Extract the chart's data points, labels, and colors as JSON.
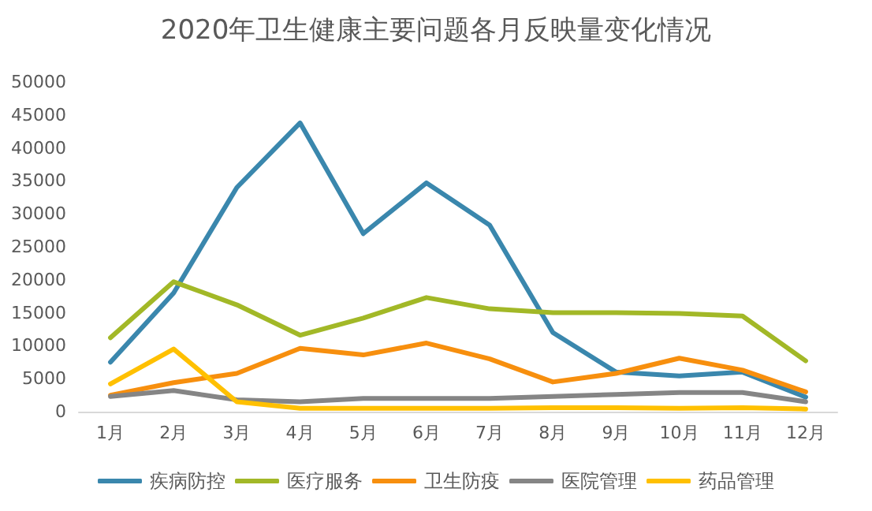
{
  "chart_data": {
    "type": "line",
    "title": "2020年卫生健康主要问题各月反映量变化情况",
    "categories": [
      "1月",
      "2月",
      "3月",
      "4月",
      "5月",
      "6月",
      "7月",
      "8月",
      "9月",
      "10月",
      "11月",
      "12月"
    ],
    "series": [
      {
        "name": "疾病防控",
        "color": "#3a87ad",
        "values": [
          7500,
          18000,
          34000,
          43800,
          27000,
          34700,
          28300,
          12000,
          6000,
          5400,
          6000,
          2200
        ]
      },
      {
        "name": "医疗服务",
        "color": "#a2b827",
        "values": [
          11200,
          19700,
          16200,
          11600,
          14200,
          17300,
          15600,
          15000,
          15000,
          14900,
          14500,
          7700
        ]
      },
      {
        "name": "卫生防疫",
        "color": "#f78f0e",
        "values": [
          2500,
          4400,
          5800,
          9600,
          8600,
          10400,
          8000,
          4500,
          5800,
          8100,
          6300,
          3000
        ]
      },
      {
        "name": "医院管理",
        "color": "#858585",
        "values": [
          2300,
          3200,
          1800,
          1500,
          2000,
          2000,
          2000,
          2300,
          2600,
          2900,
          2900,
          1500
        ]
      },
      {
        "name": "药品管理",
        "color": "#ffc000",
        "values": [
          4200,
          9500,
          1500,
          500,
          500,
          500,
          500,
          600,
          600,
          500,
          600,
          400
        ]
      }
    ],
    "ylim": [
      0,
      50000
    ],
    "yticks": [
      0,
      5000,
      10000,
      15000,
      20000,
      25000,
      30000,
      35000,
      40000,
      45000,
      50000
    ],
    "grid": false,
    "legend": "bottom",
    "marker": "none",
    "line_style": "solid"
  }
}
